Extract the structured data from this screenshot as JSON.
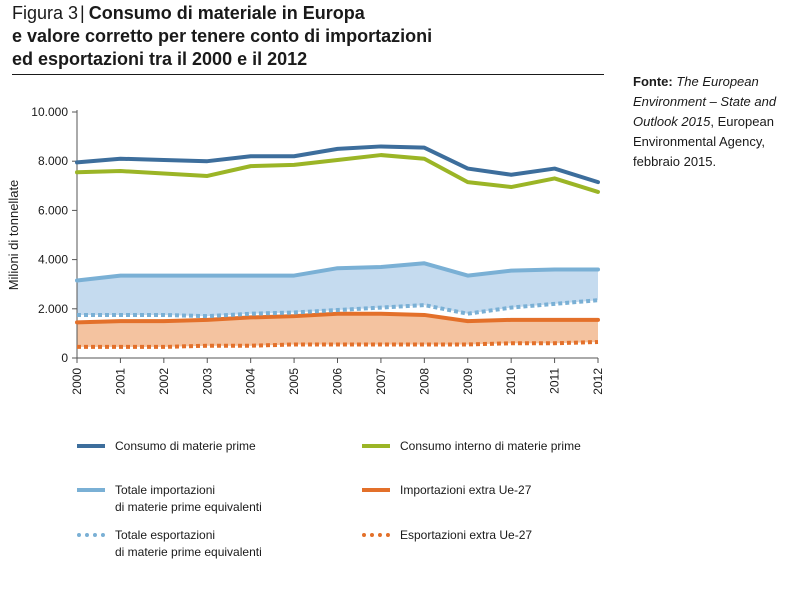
{
  "figure": {
    "label": "Figura 3",
    "title_line1": "Consumo di materiale in Europa",
    "title_line2": "e valore corretto per tenere conto di importazioni",
    "title_line3": "ed esportazioni tra il 2000 e il 2012"
  },
  "source": {
    "label": "Fonte:",
    "italic": "The European Environment – State and Outlook 2015",
    "rest": ", European Environmental Agency, febbraio 2015."
  },
  "colors": {
    "consumo_mp": "#3d6e9c",
    "consumo_interno": "#9bb526",
    "totale_import": "#7ab0d5",
    "import_extra": "#e3702a",
    "totale_export": "#7ab0d5",
    "export_extra": "#e3702a",
    "fill_blue": "#c5dbef",
    "fill_orange": "#f4c3a0",
    "axis": "#555555"
  },
  "legend": [
    {
      "key": "consumo_mp",
      "style": "solid",
      "line1": "Consumo di materie prime",
      "line2": ""
    },
    {
      "key": "consumo_interno",
      "style": "solid",
      "line1": "Consumo interno di materie prime",
      "line2": ""
    },
    {
      "key": "totale_import",
      "style": "solid",
      "line1": "Totale importazioni",
      "line2": "di materie prime equivalenti"
    },
    {
      "key": "import_extra",
      "style": "solid",
      "line1": "Importazioni extra Ue-27",
      "line2": ""
    },
    {
      "key": "totale_export",
      "style": "dot",
      "line1": "Totale esportazioni",
      "line2": "di materie prime equivalenti"
    },
    {
      "key": "export_extra",
      "style": "dot",
      "line1": "Esportazioni extra Ue-27",
      "line2": ""
    }
  ],
  "chart_data": {
    "type": "line",
    "ylabel": "Milioni di tonnellate",
    "xlabel": "",
    "ylim": [
      0,
      10000
    ],
    "yticks": [
      0,
      2000,
      4000,
      6000,
      8000,
      10000
    ],
    "ytick_labels": [
      "0",
      "2.000",
      "4.000",
      "6.000",
      "8.000",
      "10.000"
    ],
    "x": [
      "2000",
      "2001",
      "2002",
      "2003",
      "2004",
      "2005",
      "2006",
      "2007",
      "2008",
      "2009",
      "2010",
      "2011",
      "2012"
    ],
    "grid": false,
    "series": [
      {
        "name": "Consumo di materie prime",
        "key": "consumo_mp",
        "values": [
          7950,
          8100,
          8050,
          8000,
          8200,
          8200,
          8500,
          8600,
          8550,
          7700,
          7450,
          7700,
          7150
        ]
      },
      {
        "name": "Consumo interno di materie prime",
        "key": "consumo_interno",
        "values": [
          7550,
          7600,
          7500,
          7400,
          7800,
          7850,
          8050,
          8250,
          8100,
          7150,
          6950,
          7300,
          6750
        ]
      },
      {
        "name": "Totale importazioni di materie prime equivalenti",
        "key": "totale_import",
        "values": [
          3150,
          3350,
          3350,
          3350,
          3350,
          3350,
          3650,
          3700,
          3850,
          3350,
          3550,
          3600,
          3600
        ]
      },
      {
        "name": "Importazioni extra Ue-27",
        "key": "import_extra",
        "values": [
          1450,
          1500,
          1500,
          1550,
          1650,
          1700,
          1800,
          1800,
          1750,
          1500,
          1550,
          1550,
          1550
        ]
      },
      {
        "name": "Totale esportazioni di materie prime equivalenti",
        "key": "totale_export",
        "values": [
          1750,
          1750,
          1750,
          1700,
          1800,
          1850,
          1950,
          2050,
          2150,
          1800,
          2050,
          2200,
          2350
        ]
      },
      {
        "name": "Esportazioni extra Ue-27",
        "key": "export_extra",
        "values": [
          450,
          450,
          450,
          500,
          500,
          550,
          550,
          550,
          550,
          550,
          600,
          600,
          650
        ]
      }
    ]
  }
}
